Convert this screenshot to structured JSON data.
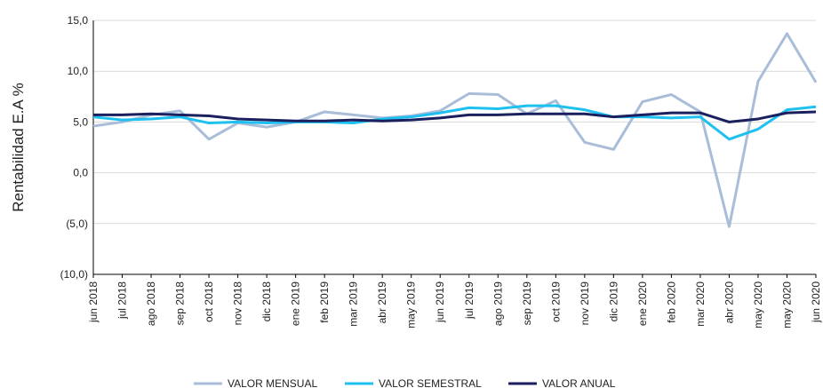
{
  "chart_data": {
    "type": "line",
    "y_label": "Rentabilidad E.A %",
    "categories": [
      "jun 2018",
      "jul 2018",
      "ago 2018",
      "sep 2018",
      "oct 2018",
      "nov 2018",
      "dic 2018",
      "ene 2019",
      "feb 2019",
      "mar 2019",
      "abr 2019",
      "may 2019",
      "jun 2019",
      "jul 2019",
      "ago 2019",
      "sep 2019",
      "oct 2019",
      "nov 2019",
      "dic 2019",
      "ene 2020",
      "feb 2020",
      "mar 2020",
      "abr 2020",
      "may 2020",
      "may 2020",
      "jun 2020"
    ],
    "series": [
      {
        "name": "VALOR MENSUAL",
        "color": "#a9bdd9",
        "values": [
          4.6,
          5.0,
          5.7,
          6.1,
          3.3,
          4.9,
          4.5,
          5.0,
          6.0,
          5.7,
          5.4,
          5.6,
          6.1,
          7.8,
          7.7,
          5.8,
          7.1,
          3.0,
          2.3,
          7.0,
          7.7,
          6.0,
          -5.3,
          9.0,
          13.7,
          8.9
        ]
      },
      {
        "name": "VALOR SEMESTRAL",
        "color": "#1ec0f0",
        "values": [
          5.5,
          5.2,
          5.3,
          5.5,
          4.9,
          5.0,
          4.9,
          5.0,
          5.0,
          4.9,
          5.3,
          5.5,
          5.9,
          6.4,
          6.3,
          6.6,
          6.6,
          6.2,
          5.5,
          5.5,
          5.4,
          5.5,
          3.3,
          4.3,
          6.2,
          6.5
        ]
      },
      {
        "name": "VALOR ANUAL",
        "color": "#1a1f5e",
        "values": [
          5.7,
          5.7,
          5.8,
          5.7,
          5.6,
          5.3,
          5.2,
          5.1,
          5.1,
          5.2,
          5.1,
          5.2,
          5.4,
          5.7,
          5.7,
          5.8,
          5.8,
          5.8,
          5.5,
          5.7,
          5.9,
          5.9,
          5.0,
          5.3,
          5.9,
          6.0
        ]
      }
    ],
    "ylim": [
      -10,
      15
    ],
    "yticks": [
      {
        "value": -10,
        "label": "(10,0)"
      },
      {
        "value": -5,
        "label": "(5,0)"
      },
      {
        "value": 0,
        "label": "0,0"
      },
      {
        "value": 5,
        "label": "5,0"
      },
      {
        "value": 10,
        "label": "10,0"
      },
      {
        "value": 15,
        "label": "15,0"
      }
    ],
    "grid": true
  }
}
